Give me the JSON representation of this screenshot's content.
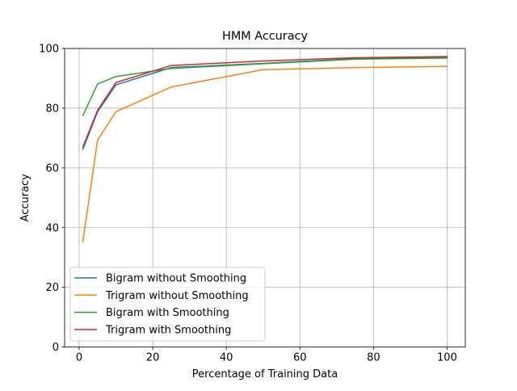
{
  "chart_data": {
    "type": "line",
    "title": "HMM Accuracy",
    "xlabel": "Percentage of Training Data",
    "ylabel": "Accuracy",
    "xlim": [
      -3.95,
      104.95
    ],
    "ylim": [
      0,
      100
    ],
    "xticks": [
      0,
      20,
      40,
      60,
      80,
      100
    ],
    "yticks": [
      0,
      20,
      40,
      60,
      80,
      100
    ],
    "grid": true,
    "legend_position": "lower-left",
    "x": [
      1,
      5,
      10,
      25,
      50,
      75,
      100
    ],
    "series": [
      {
        "name": "Bigram without Smoothing",
        "color": "#1f77b4",
        "values": [
          66.2,
          78.8,
          87.8,
          93.6,
          95.0,
          96.6,
          97.0
        ]
      },
      {
        "name": "Trigram without Smoothing",
        "color": "#ff7f0e",
        "values": [
          35.3,
          69.3,
          78.8,
          87.1,
          92.9,
          93.6,
          94.0
        ]
      },
      {
        "name": "Bigram with Smoothing",
        "color": "#2ca02c",
        "values": [
          77.5,
          88.1,
          90.6,
          93.3,
          94.9,
          96.4,
          96.8
        ]
      },
      {
        "name": "Trigram with Smoothing",
        "color": "#d62728",
        "values": [
          67.0,
          79.3,
          88.6,
          94.3,
          95.8,
          96.9,
          97.3
        ]
      }
    ]
  }
}
